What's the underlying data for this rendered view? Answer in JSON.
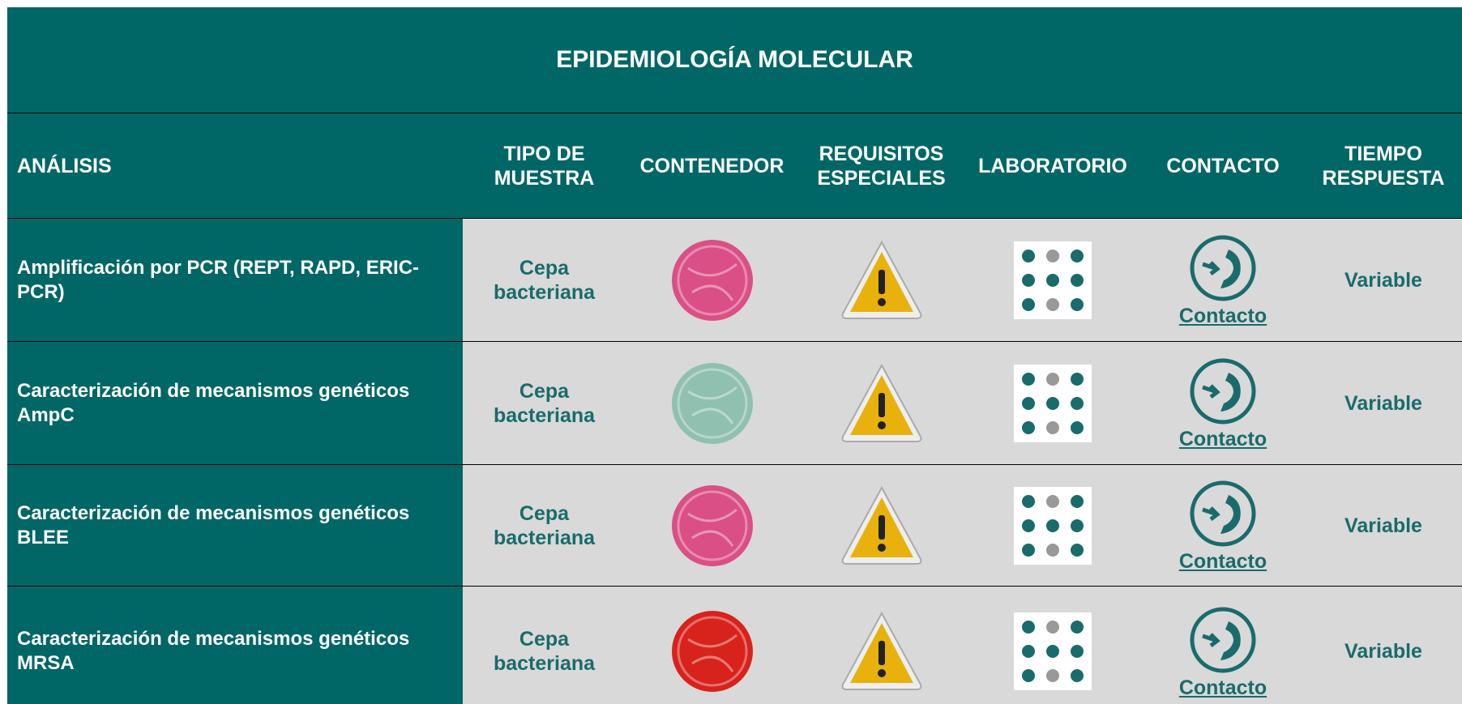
{
  "header": {
    "title": "EPIDEMIOLOGÍA MOLECULAR"
  },
  "table": {
    "columns": [
      "ANÁLISIS",
      "TIPO DE MUESTRA",
      "CONTENEDOR",
      "REQUISITOS ESPECIALES",
      "LABORATORIO",
      "CONTACTO",
      "TIEMPO RESPUESTA"
    ],
    "rows": [
      {
        "analisis": "Amplificación por PCR (REPT, RAPD, ERIC-PCR)",
        "tipo": "Cepa bacteriana",
        "contacto": "Contacto",
        "tiempo": "Variable"
      },
      {
        "analisis": "Caracterización de mecanismos genéticos AmpC",
        "tipo": "Cepa bacteriana",
        "contacto": "Contacto",
        "tiempo": "Variable"
      },
      {
        "analisis": "Caracterización de mecanismos genéticos BLEE",
        "tipo": "Cepa bacteriana",
        "contacto": "Contacto",
        "tiempo": "Variable"
      },
      {
        "analisis": "Caracterización de mecanismos genéticos MRSA",
        "tipo": "Cepa bacteriana",
        "contacto": "Contacto",
        "tiempo": "Variable"
      }
    ]
  }
}
